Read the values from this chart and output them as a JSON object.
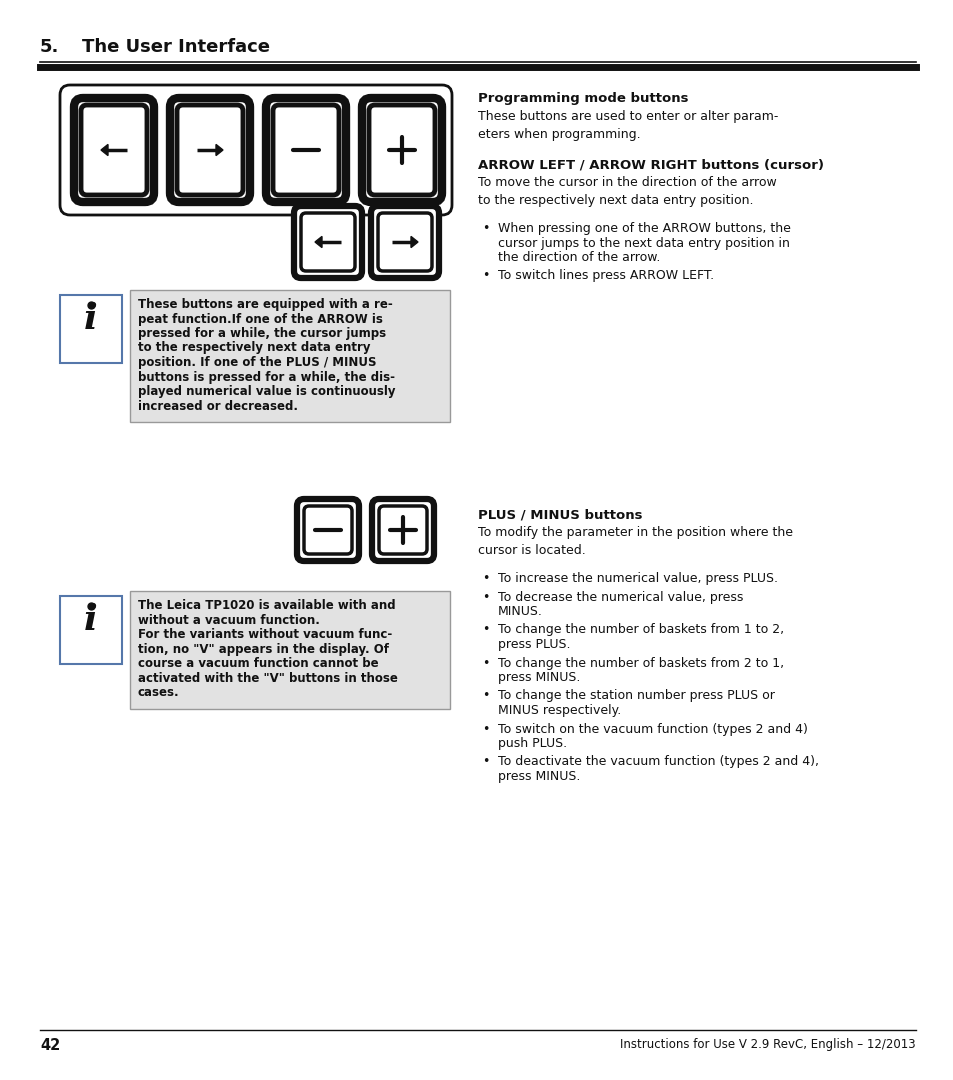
{
  "bg_color": "#ffffff",
  "page_num": "42",
  "footer_text": "Instructions for Use V 2.9 RevC, English – 12/2013",
  "prog_mode_title": "Programming mode buttons",
  "prog_mode_text": "These buttons are used to enter or alter param-\neters when programming.",
  "arrow_section_title": "ARROW LEFT / ARROW RIGHT buttons (cursor)",
  "arrow_section_text": "To move the cursor in the direction of the arrow\nto the respectively next data entry position.",
  "arrow_bullet1_line1": "When pressing one of the ARROW buttons, the",
  "arrow_bullet1_line2": "cursor jumps to the next data entry position in",
  "arrow_bullet1_line3": "the direction of the arrow.",
  "arrow_bullet2": "To switch lines press ARROW LEFT.",
  "plus_minus_title": "PLUS / MINUS buttons",
  "plus_minus_text": "To modify the parameter in the position where the\ncursor is located.",
  "pm_bullet1": "To increase the numerical value, press PLUS.",
  "pm_bullet2_line1": "To decrease the numerical value, press",
  "pm_bullet2_line2": "MINUS.",
  "pm_bullet3_line1": "To change the number of baskets from 1 to 2,",
  "pm_bullet3_line2": "press PLUS.",
  "pm_bullet4_line1": "To change the number of baskets from 2 to 1,",
  "pm_bullet4_line2": "press MINUS.",
  "pm_bullet5_line1": "To change the station number press PLUS or",
  "pm_bullet5_line2": "MINUS respectively.",
  "pm_bullet6_line1": "To switch on the vacuum function (types 2 and 4)",
  "pm_bullet6_line2": "push PLUS.",
  "pm_bullet7_line1": "To deactivate the vacuum function (types 2 and 4),",
  "pm_bullet7_line2": "press MINUS.",
  "info_box1_lines": [
    "These buttons are equipped with a re-",
    "peat function.If one of the ARROW is",
    "pressed for a while, the cursor jumps",
    "to the respectively next data entry",
    "position. If one of the PLUS / MINUS",
    "buttons is pressed for a while, the dis-",
    "played numerical value is continuously",
    "increased or decreased."
  ],
  "info_box2_lines": [
    "The Leica TP1020 is available with and",
    "without a vacuum function.",
    "For the variants without vacuum func-",
    "tion, no \"V\" appears in the display. Of",
    "course a vacuum function cannot be",
    "activated with the \"V\" buttons in those",
    "cases."
  ]
}
